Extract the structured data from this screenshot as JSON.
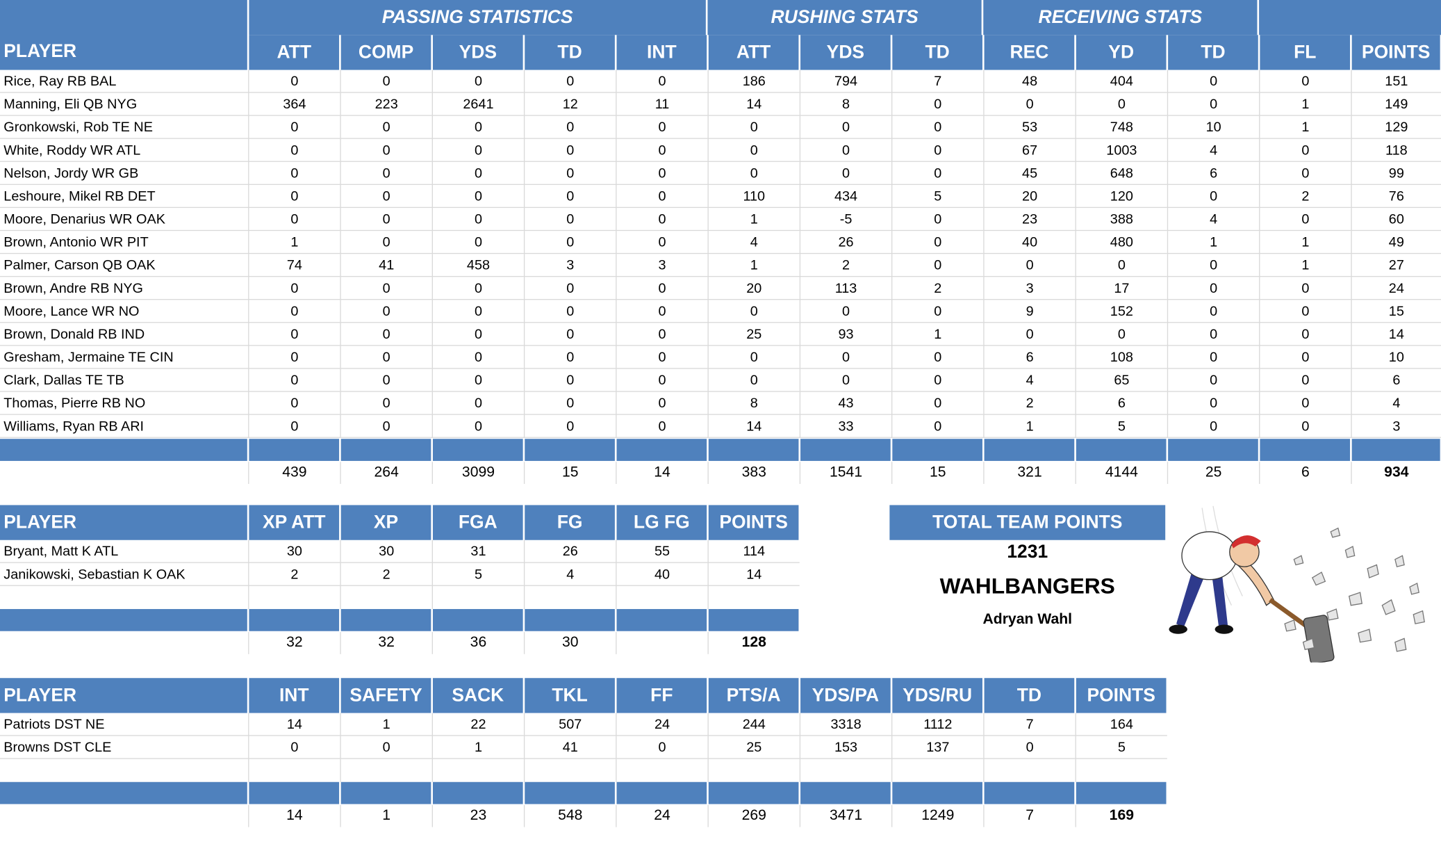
{
  "offense": {
    "group_headers": {
      "passing": "PASSING STATISTICS",
      "rushing": "RUSHING STATS",
      "receiving": "RECEIVING STATS"
    },
    "columns": [
      "PLAYER",
      "ATT",
      "COMP",
      "YDS",
      "TD",
      "INT",
      "ATT",
      "YDS",
      "TD",
      "REC",
      "YD",
      "TD",
      "FL",
      "POINTS"
    ],
    "rows": [
      [
        "Rice, Ray RB BAL",
        "0",
        "0",
        "0",
        "0",
        "0",
        "186",
        "794",
        "7",
        "48",
        "404",
        "0",
        "0",
        "151"
      ],
      [
        "Manning, Eli QB NYG",
        "364",
        "223",
        "2641",
        "12",
        "11",
        "14",
        "8",
        "0",
        "0",
        "0",
        "0",
        "1",
        "149"
      ],
      [
        "Gronkowski, Rob TE NE",
        "0",
        "0",
        "0",
        "0",
        "0",
        "0",
        "0",
        "0",
        "53",
        "748",
        "10",
        "1",
        "129"
      ],
      [
        "White, Roddy WR ATL",
        "0",
        "0",
        "0",
        "0",
        "0",
        "0",
        "0",
        "0",
        "67",
        "1003",
        "4",
        "0",
        "118"
      ],
      [
        "Nelson, Jordy WR GB",
        "0",
        "0",
        "0",
        "0",
        "0",
        "0",
        "0",
        "0",
        "45",
        "648",
        "6",
        "0",
        "99"
      ],
      [
        "Leshoure, Mikel RB DET",
        "0",
        "0",
        "0",
        "0",
        "0",
        "110",
        "434",
        "5",
        "20",
        "120",
        "0",
        "2",
        "76"
      ],
      [
        "Moore, Denarius WR OAK",
        "0",
        "0",
        "0",
        "0",
        "0",
        "1",
        "-5",
        "0",
        "23",
        "388",
        "4",
        "0",
        "60"
      ],
      [
        "Brown, Antonio WR PIT",
        "1",
        "0",
        "0",
        "0",
        "0",
        "4",
        "26",
        "0",
        "40",
        "480",
        "1",
        "1",
        "49"
      ],
      [
        "Palmer, Carson QB OAK",
        "74",
        "41",
        "458",
        "3",
        "3",
        "1",
        "2",
        "0",
        "0",
        "0",
        "0",
        "1",
        "27"
      ],
      [
        "Brown, Andre RB NYG",
        "0",
        "0",
        "0",
        "0",
        "0",
        "20",
        "113",
        "2",
        "3",
        "17",
        "0",
        "0",
        "24"
      ],
      [
        "Moore, Lance WR NO",
        "0",
        "0",
        "0",
        "0",
        "0",
        "0",
        "0",
        "0",
        "9",
        "152",
        "0",
        "0",
        "15"
      ],
      [
        "Brown, Donald RB IND",
        "0",
        "0",
        "0",
        "0",
        "0",
        "25",
        "93",
        "1",
        "0",
        "0",
        "0",
        "0",
        "14"
      ],
      [
        "Gresham, Jermaine TE CIN",
        "0",
        "0",
        "0",
        "0",
        "0",
        "0",
        "0",
        "0",
        "6",
        "108",
        "0",
        "0",
        "10"
      ],
      [
        "Clark, Dallas TE TB",
        "0",
        "0",
        "0",
        "0",
        "0",
        "0",
        "0",
        "0",
        "4",
        "65",
        "0",
        "0",
        "6"
      ],
      [
        "Thomas, Pierre RB NO",
        "0",
        "0",
        "0",
        "0",
        "0",
        "8",
        "43",
        "0",
        "2",
        "6",
        "0",
        "0",
        "4"
      ],
      [
        "Williams, Ryan RB ARI",
        "0",
        "0",
        "0",
        "0",
        "0",
        "14",
        "33",
        "0",
        "1",
        "5",
        "0",
        "0",
        "3"
      ]
    ],
    "totals": [
      "",
      "439",
      "264",
      "3099",
      "15",
      "14",
      "383",
      "1541",
      "15",
      "321",
      "4144",
      "25",
      "6",
      "934"
    ]
  },
  "kickers": {
    "columns": [
      "PLAYER",
      "XP ATT",
      "XP",
      "FGA",
      "FG",
      "LG FG",
      "POINTS"
    ],
    "rows": [
      [
        "Bryant, Matt K ATL",
        "30",
        "30",
        "31",
        "26",
        "55",
        "114"
      ],
      [
        "Janikowski, Sebastian K OAK",
        "2",
        "2",
        "5",
        "4",
        "40",
        "14"
      ]
    ],
    "totals": [
      "",
      "32",
      "32",
      "36",
      "30",
      "",
      "128"
    ]
  },
  "defense": {
    "columns": [
      "PLAYER",
      "INT",
      "SAFETY",
      "SACK",
      "TKL",
      "FF",
      "PTS/A",
      "YDS/PA",
      "YDS/RU",
      "TD",
      "POINTS"
    ],
    "rows": [
      [
        "Patriots DST NE",
        "14",
        "1",
        "22",
        "507",
        "24",
        "244",
        "3318",
        "1112",
        "7",
        "164"
      ],
      [
        "Browns DST CLE",
        "0",
        "0",
        "1",
        "41",
        "0",
        "25",
        "153",
        "137",
        "0",
        "5"
      ]
    ],
    "totals": [
      "",
      "14",
      "1",
      "23",
      "548",
      "24",
      "269",
      "3471",
      "1249",
      "7",
      "169"
    ]
  },
  "team": {
    "header": "TOTAL TEAM POINTS",
    "total_points": "1231",
    "team_name": "WAHLBANGERS",
    "owner": "Adryan Wahl",
    "logo_icon": "sledgehammer-man-icon"
  },
  "colors": {
    "header_blue": "#4f81bd",
    "grid_gray": "#d9d9d9"
  }
}
